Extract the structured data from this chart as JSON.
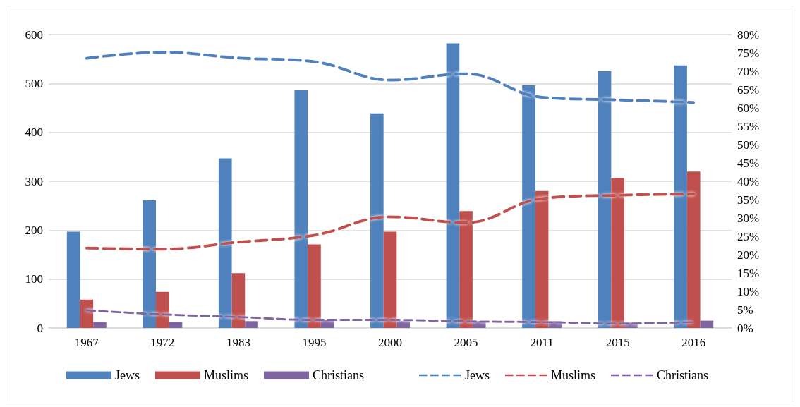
{
  "chart_data": {
    "type": "bar",
    "categories": [
      "1967",
      "1972",
      "1983",
      "1995",
      "2000",
      "2005",
      "2011",
      "2015",
      "2016"
    ],
    "series": [
      {
        "name": "Jews",
        "color": "#4f81bd",
        "values": [
          197,
          261,
          347,
          486,
          439,
          582,
          496,
          525,
          537
        ]
      },
      {
        "name": "Muslims",
        "color": "#c0504d",
        "values": [
          58,
          74,
          112,
          171,
          197,
          239,
          280,
          307,
          320
        ]
      },
      {
        "name": "Christians",
        "color": "#8064a2",
        "values": [
          12,
          12,
          14,
          16,
          14,
          14,
          14,
          11,
          15
        ]
      },
      {
        "name": "Jews",
        "type": "line",
        "axis": "y2",
        "line_style": "dashed",
        "color": "#4f81bd",
        "values": [
          73.5,
          75.2,
          73.6,
          72.6,
          67.6,
          69.3,
          62.9,
          62.2,
          61.5
        ]
      },
      {
        "name": "Muslims",
        "type": "line",
        "axis": "y2",
        "line_style": "dashed",
        "color": "#c0504d",
        "values": [
          21.8,
          21.5,
          23.4,
          25.3,
          30.3,
          28.7,
          35.3,
          36.2,
          36.5
        ]
      },
      {
        "name": "Christians",
        "type": "line",
        "axis": "y2",
        "line_style": "dashed",
        "color": "#8064a2",
        "values": [
          4.8,
          3.7,
          3.0,
          2.2,
          2.2,
          1.8,
          1.6,
          1.2,
          1.6
        ]
      }
    ],
    "ylim": [
      0,
      600
    ],
    "yticks": [
      0,
      100,
      200,
      300,
      400,
      500,
      600
    ],
    "y2lim": [
      0,
      80
    ],
    "y2ticks": [
      {
        "value": 0,
        "label": "0%"
      },
      {
        "value": 5,
        "label": "5%"
      },
      {
        "value": 10,
        "label": "10%"
      },
      {
        "value": 15,
        "label": "15%"
      },
      {
        "value": 20,
        "label": "20%"
      },
      {
        "value": 25,
        "label": "25%"
      },
      {
        "value": 30,
        "label": "30%"
      },
      {
        "value": 35,
        "label": "35%"
      },
      {
        "value": 40,
        "label": "40%"
      },
      {
        "value": 45,
        "label": "45%"
      },
      {
        "value": 50,
        "label": "50%"
      },
      {
        "value": 55,
        "label": "55%"
      },
      {
        "value": 60,
        "label": "60%"
      },
      {
        "value": 65,
        "label": "65%"
      },
      {
        "value": 70,
        "label": "70%"
      },
      {
        "value": 75,
        "label": "75%"
      },
      {
        "value": 80,
        "label": "80%"
      }
    ],
    "grid": "y",
    "legend": "bottom",
    "marker": "none"
  }
}
